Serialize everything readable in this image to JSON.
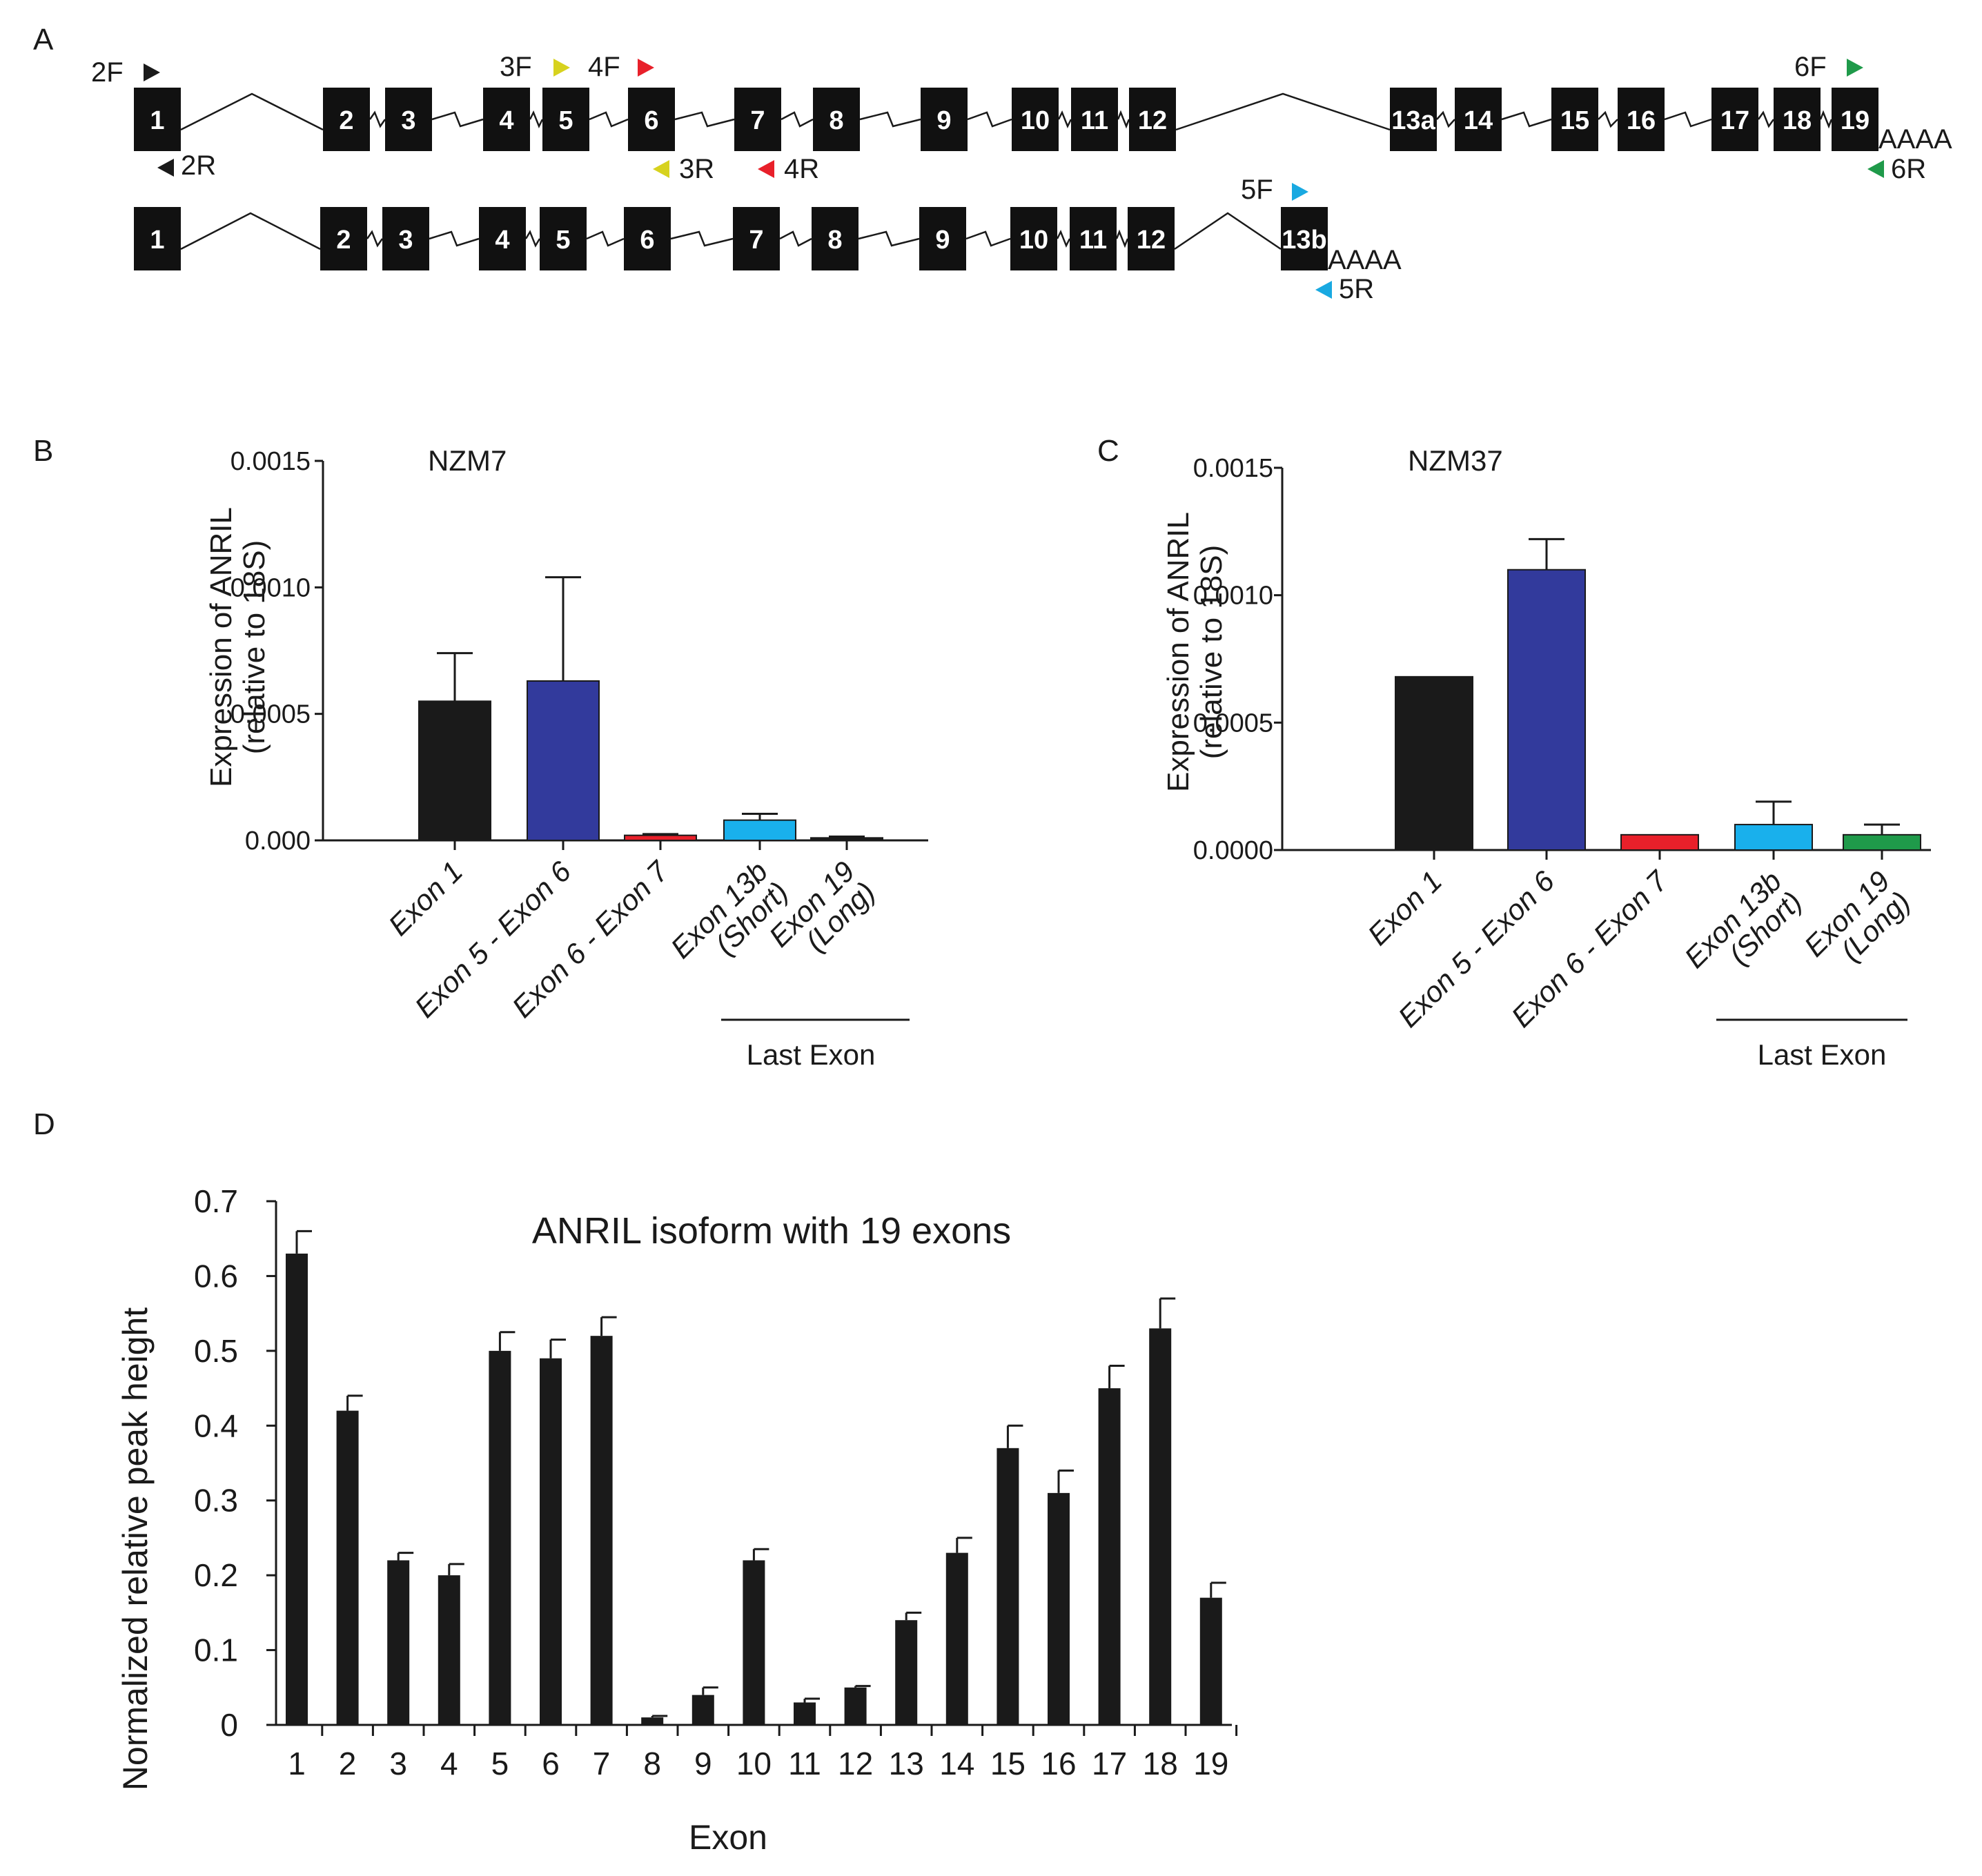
{
  "panels": {
    "a": "A",
    "b": "B",
    "c": "C",
    "d": "D"
  },
  "panel_a": {
    "long_isoform_exons": [
      "1",
      "2",
      "3",
      "4",
      "5",
      "6",
      "7",
      "8",
      "9",
      "10",
      "11",
      "12",
      "13a",
      "14",
      "15",
      "16",
      "17",
      "18",
      "19"
    ],
    "short_isoform_exons": [
      "1",
      "2",
      "3",
      "4",
      "5",
      "6",
      "7",
      "8",
      "9",
      "10",
      "11",
      "12",
      "13b"
    ],
    "poly_a": "AAAA",
    "primers": [
      {
        "label": "2F",
        "color": "#1a1a1a"
      },
      {
        "label": "2R",
        "color": "#1a1a1a"
      },
      {
        "label": "3F",
        "color": "#d7d21e"
      },
      {
        "label": "3R",
        "color": "#d7d21e"
      },
      {
        "label": "4F",
        "color": "#e8202a"
      },
      {
        "label": "4R",
        "color": "#e8202a"
      },
      {
        "label": "5F",
        "color": "#19a9e1"
      },
      {
        "label": "5R",
        "color": "#19a9e1"
      },
      {
        "label": "6F",
        "color": "#1f9a4a"
      },
      {
        "label": "6R",
        "color": "#1f9a4a"
      }
    ]
  },
  "colors": {
    "black": "#1a1a1a",
    "blue": "#323a9c",
    "red": "#e8202a",
    "cyan": "#19b0ec",
    "green": "#1f9a4a"
  },
  "chart_data": [
    {
      "panel": "B",
      "type": "bar",
      "title": "NZM7",
      "ylabel_line1": "Expression of ANRIL",
      "ylabel_line2": "(relative to 18S)",
      "ylim": [
        0,
        0.0015
      ],
      "yticks": [
        "0.000",
        "0.0005",
        "0.0010",
        "0.0015"
      ],
      "categories": [
        "Exon 1",
        "Exon 5 - Exon 6",
        "Exon 6 - Exon 7",
        "Exon 13b\n(Short)",
        "Exon 19\n(Long)"
      ],
      "values": [
        0.00055,
        0.00063,
        2e-05,
        8e-05,
        1e-05
      ],
      "errors": [
        0.00019,
        0.00041,
        5e-06,
        2.5e-05,
        5e-06
      ],
      "colors": [
        "#1a1a1a",
        "#323a9c",
        "#e8202a",
        "#19b0ec",
        "#1a1a1a"
      ],
      "group_label": "Last Exon"
    },
    {
      "panel": "C",
      "type": "bar",
      "title": "NZM37",
      "ylabel_line1": "Expression of ANRIL",
      "ylabel_line2": "(relative to 18S)",
      "ylim": [
        0,
        0.0015
      ],
      "yticks": [
        "0.0000",
        "0.0005",
        "0.0010",
        "0.0015"
      ],
      "categories": [
        "Exon 1",
        "Exon 5 - Exon 6",
        "Exon 6 - Exon 7",
        "Exon 13b\n(Short)",
        "Exon 19\n(Long)"
      ],
      "values": [
        0.00068,
        0.0011,
        6e-05,
        0.0001,
        6e-05
      ],
      "errors": [
        0,
        0.00012,
        0,
        9e-05,
        4e-05
      ],
      "colors": [
        "#1a1a1a",
        "#323a9c",
        "#e8202a",
        "#19b0ec",
        "#1f9a4a"
      ],
      "group_label": "Last Exon"
    },
    {
      "panel": "D",
      "type": "bar",
      "title": "ANRIL isoform with 19 exons",
      "xlabel": "Exon",
      "ylabel": "Normalized relative peak height",
      "ylim": [
        0,
        0.7
      ],
      "yticks": [
        "0",
        "0.1",
        "0.2",
        "0.3",
        "0.4",
        "0.5",
        "0.6",
        "0.7"
      ],
      "categories": [
        "1",
        "2",
        "3",
        "4",
        "5",
        "6",
        "7",
        "8",
        "9",
        "10",
        "11",
        "12",
        "13",
        "14",
        "15",
        "16",
        "17",
        "18",
        "19"
      ],
      "values": [
        0.63,
        0.42,
        0.22,
        0.2,
        0.5,
        0.49,
        0.52,
        0.01,
        0.04,
        0.22,
        0.03,
        0.05,
        0.14,
        0.23,
        0.37,
        0.31,
        0.45,
        0.53,
        0.17
      ],
      "errors": [
        0.03,
        0.02,
        0.01,
        0.015,
        0.025,
        0.025,
        0.025,
        0.002,
        0.01,
        0.015,
        0.005,
        0.002,
        0.01,
        0.02,
        0.03,
        0.03,
        0.03,
        0.04,
        0.02
      ],
      "color": "#1a1a1a"
    }
  ]
}
